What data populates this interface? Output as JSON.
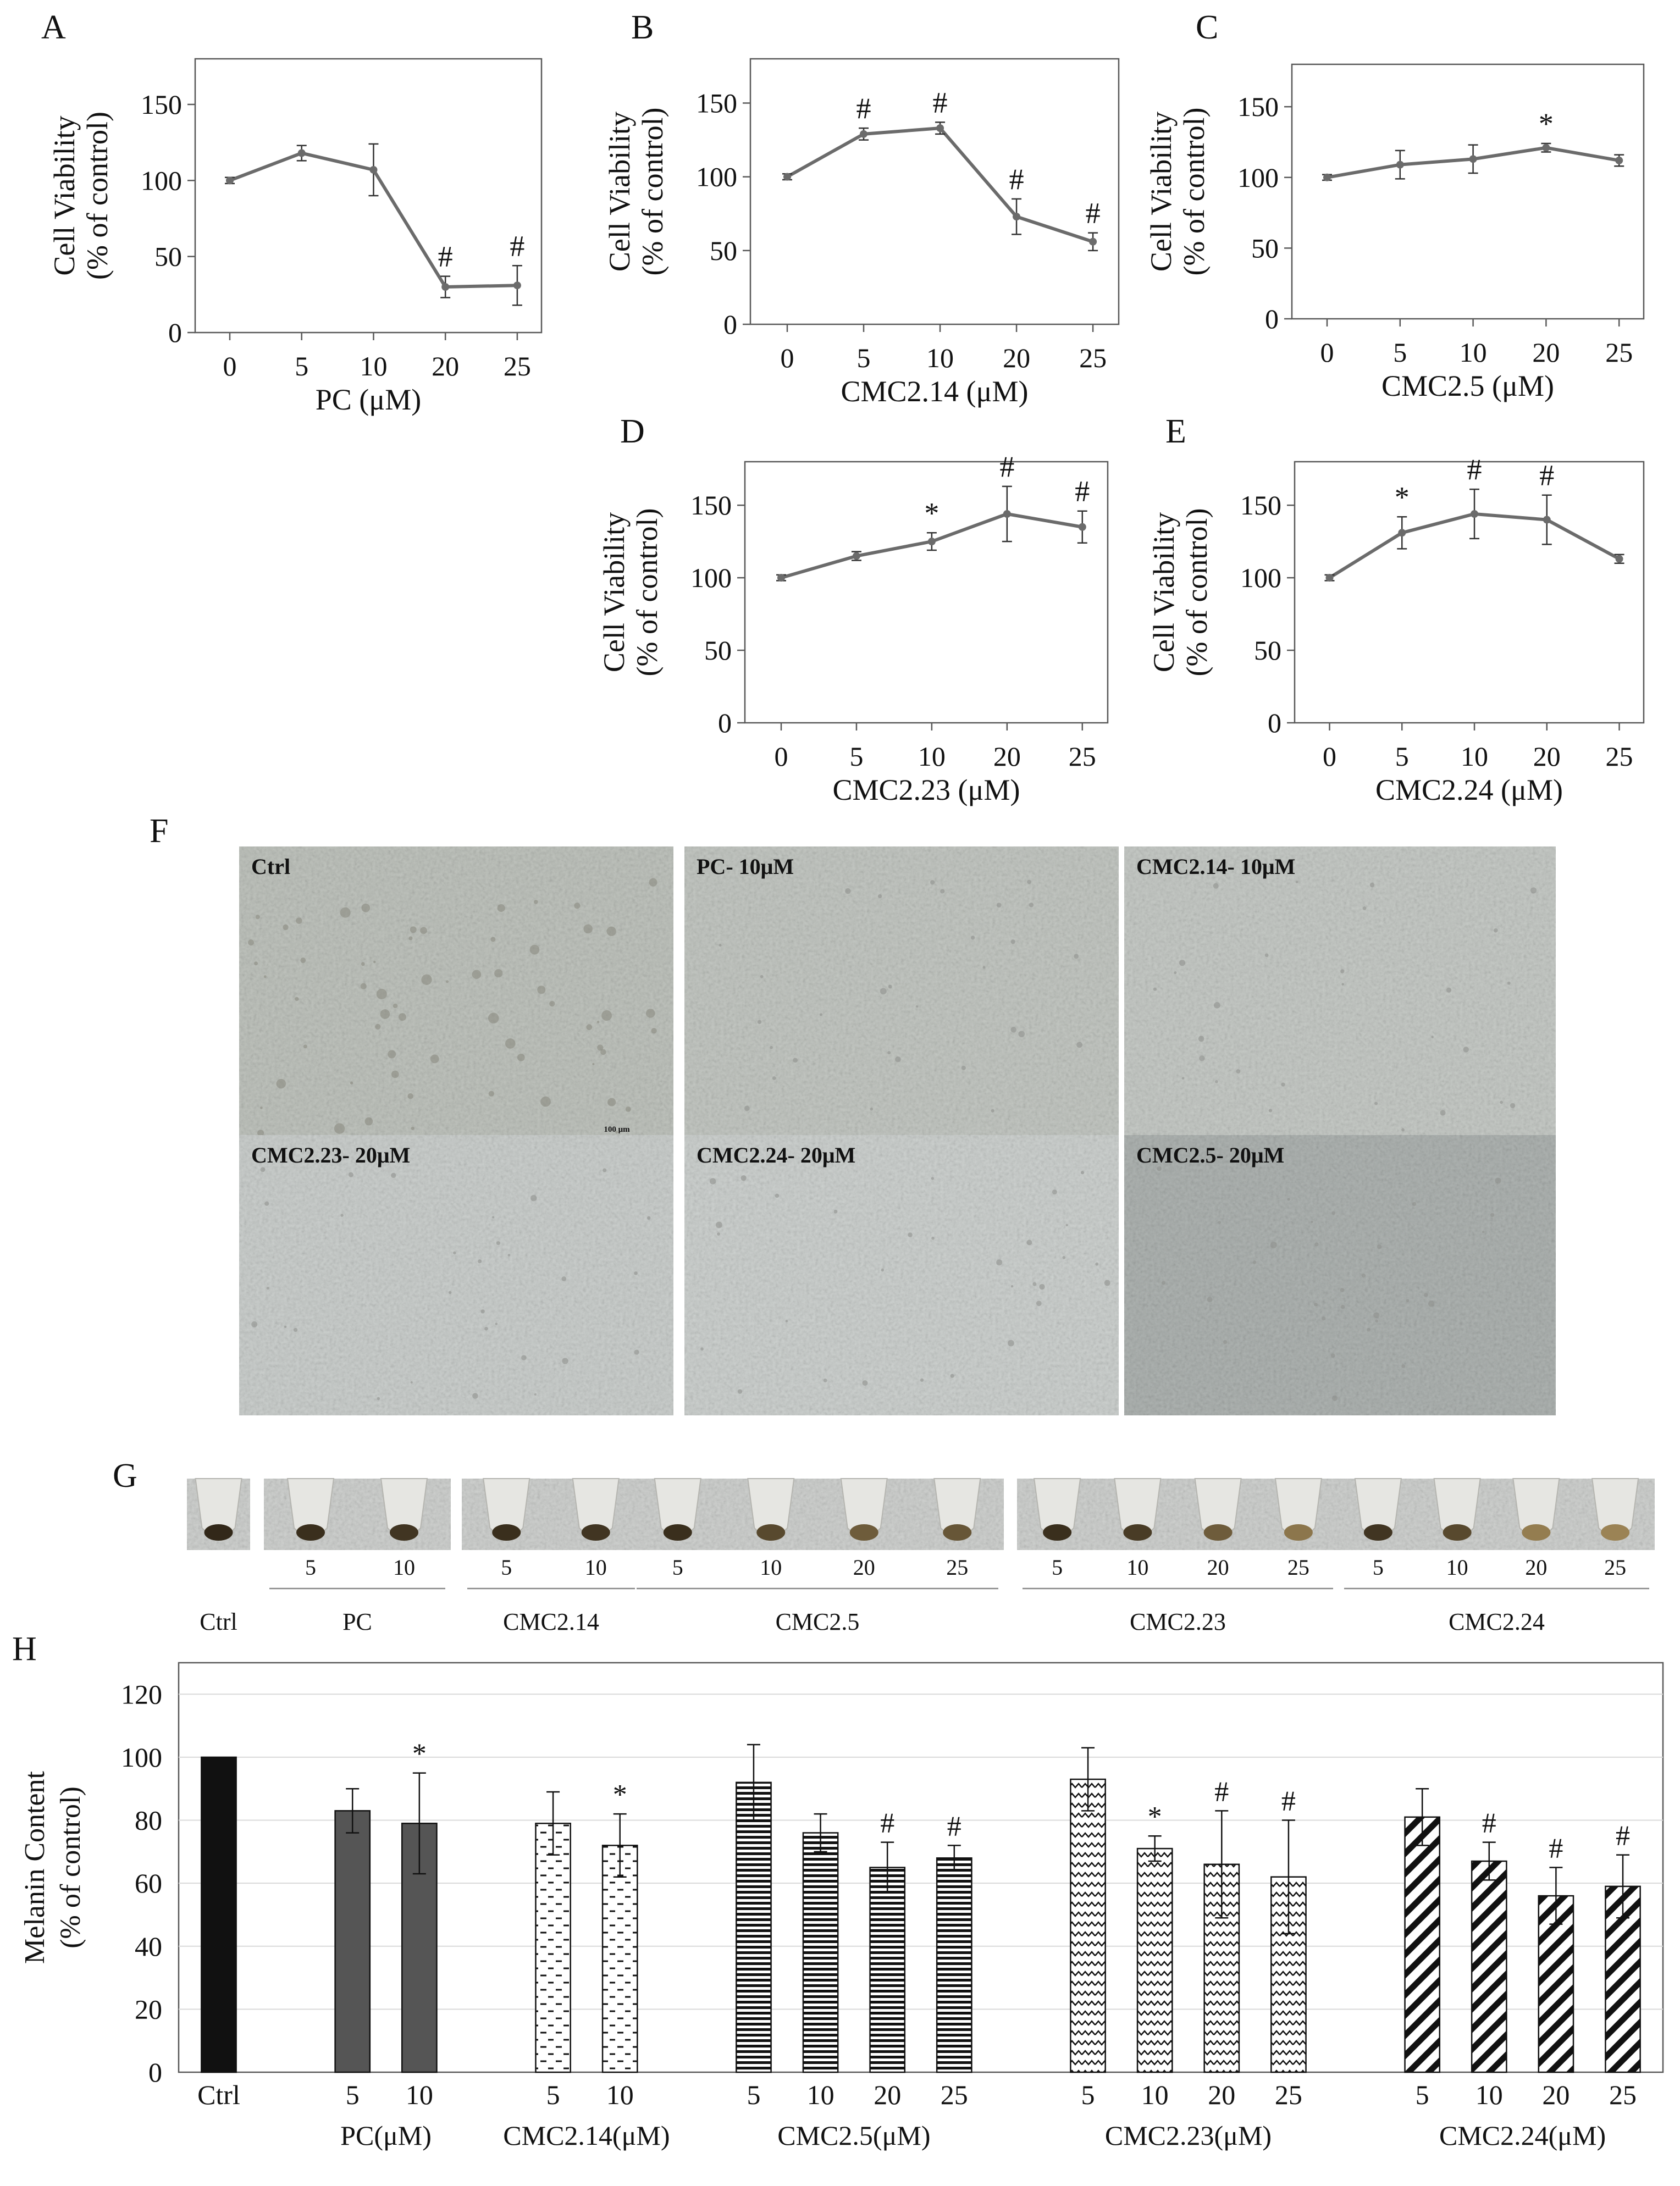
{
  "colors": {
    "line": "#6b6b6b",
    "axis": "#595959",
    "grid": "#d9d9d9",
    "text": "#111111",
    "photo_light": "#c9cdcb",
    "photo_dark": "#a9adab",
    "pellet": "#3f2418"
  },
  "chart_data": [
    {
      "id": "A",
      "type": "line",
      "panel_letter": "A",
      "x": [
        "0",
        "5",
        "10",
        "20",
        "25"
      ],
      "values": [
        100,
        118,
        107,
        30,
        31
      ],
      "errors": [
        2,
        5,
        17,
        7,
        13
      ],
      "annotations": [
        "",
        "",
        "",
        "#",
        "#"
      ],
      "xlabel": "PC (μM)",
      "ylabel": [
        "Cell Viability",
        "(% of control)"
      ],
      "yticks": [
        0,
        50,
        100,
        150
      ],
      "ylim": [
        0,
        180
      ],
      "grid": false
    },
    {
      "id": "B",
      "type": "line",
      "panel_letter": "B",
      "x": [
        "0",
        "5",
        "10",
        "20",
        "25"
      ],
      "values": [
        100,
        129,
        133,
        73,
        56
      ],
      "errors": [
        2,
        4,
        4,
        12,
        6
      ],
      "annotations": [
        "",
        "#",
        "#",
        "#",
        "#"
      ],
      "xlabel": "CMC2.14 (μM)",
      "ylabel": [
        "Cell Viability",
        "(% of control)"
      ],
      "yticks": [
        0,
        50,
        100,
        150
      ],
      "ylim": [
        0,
        180
      ],
      "grid": false
    },
    {
      "id": "C",
      "type": "line",
      "panel_letter": "C",
      "x": [
        "0",
        "5",
        "10",
        "20",
        "25"
      ],
      "values": [
        100,
        109,
        113,
        121,
        112
      ],
      "errors": [
        2,
        10,
        10,
        3,
        4
      ],
      "annotations": [
        "",
        "",
        "",
        "*",
        ""
      ],
      "xlabel": "CMC2.5 (μM)",
      "ylabel": [
        "Cell Viability",
        "(% of control)"
      ],
      "yticks": [
        0,
        50,
        100,
        150
      ],
      "ylim": [
        0,
        180
      ],
      "grid": false
    },
    {
      "id": "D",
      "type": "line",
      "panel_letter": "D",
      "x": [
        "0",
        "5",
        "10",
        "20",
        "25"
      ],
      "values": [
        100,
        115,
        125,
        144,
        135
      ],
      "errors": [
        2,
        3,
        6,
        19,
        11
      ],
      "annotations": [
        "",
        "",
        "*",
        "#",
        "#"
      ],
      "xlabel": "CMC2.23 (μM)",
      "ylabel": [
        "Cell Viability",
        "(% of control)"
      ],
      "yticks": [
        0,
        50,
        100,
        150
      ],
      "ylim": [
        0,
        180
      ],
      "grid": false
    },
    {
      "id": "E",
      "type": "line",
      "panel_letter": "E",
      "x": [
        "0",
        "5",
        "10",
        "20",
        "25"
      ],
      "values": [
        100,
        131,
        144,
        140,
        113
      ],
      "errors": [
        2,
        11,
        17,
        17,
        3
      ],
      "annotations": [
        "",
        "*",
        "#",
        "#",
        ""
      ],
      "xlabel": "CMC2.24 (μM)",
      "ylabel": [
        "Cell Viability",
        "(% of control)"
      ],
      "yticks": [
        0,
        50,
        100,
        150
      ],
      "ylim": [
        0,
        180
      ],
      "grid": false
    },
    {
      "id": "H",
      "type": "bar",
      "panel_letter": "H",
      "ylabel": [
        "Melanin Content",
        "(% of control)"
      ],
      "yticks": [
        0,
        20,
        40,
        60,
        80,
        100,
        120
      ],
      "ylim": [
        0,
        130
      ],
      "grid": true,
      "groups": [
        {
          "label": "",
          "pattern": "solid-black",
          "bars": [
            {
              "x": "Ctrl",
              "value": 100,
              "error": 0,
              "annotation": ""
            }
          ]
        },
        {
          "label": "PC(μM)",
          "pattern": "solid-gray",
          "bars": [
            {
              "x": "5",
              "value": 83,
              "error": 7,
              "annotation": ""
            },
            {
              "x": "10",
              "value": 79,
              "error": 16,
              "annotation": "*"
            }
          ]
        },
        {
          "label": "CMC2.14(μM)",
          "pattern": "dashes",
          "bars": [
            {
              "x": "5",
              "value": 79,
              "error": 10,
              "annotation": ""
            },
            {
              "x": "10",
              "value": 72,
              "error": 10,
              "annotation": "*"
            }
          ]
        },
        {
          "label": "CMC2.5(μM)",
          "pattern": "horizontal-lines",
          "bars": [
            {
              "x": "5",
              "value": 92,
              "error": 12,
              "annotation": ""
            },
            {
              "x": "10",
              "value": 76,
              "error": 6,
              "annotation": ""
            },
            {
              "x": "20",
              "value": 65,
              "error": 8,
              "annotation": "#"
            },
            {
              "x": "25",
              "value": 68,
              "error": 4,
              "annotation": "#"
            }
          ]
        },
        {
          "label": "CMC2.23(μM)",
          "pattern": "zigzag",
          "bars": [
            {
              "x": "5",
              "value": 93,
              "error": 10,
              "annotation": ""
            },
            {
              "x": "10",
              "value": 71,
              "error": 4,
              "annotation": "*"
            },
            {
              "x": "20",
              "value": 66,
              "error": 17,
              "annotation": "#"
            },
            {
              "x": "25",
              "value": 62,
              "error": 18,
              "annotation": "#"
            }
          ]
        },
        {
          "label": "CMC2.24(μM)",
          "pattern": "diagonal",
          "bars": [
            {
              "x": "5",
              "value": 81,
              "error": 9,
              "annotation": ""
            },
            {
              "x": "10",
              "value": 67,
              "error": 6,
              "annotation": "#"
            },
            {
              "x": "20",
              "value": 56,
              "error": 9,
              "annotation": "#"
            },
            {
              "x": "25",
              "value": 59,
              "error": 10,
              "annotation": "#"
            }
          ]
        }
      ]
    }
  ],
  "photos": {
    "panel_letter": "F",
    "tiles": [
      {
        "label": "Ctrl",
        "scale_bar": "100 μm"
      },
      {
        "label": "PC- 10μM"
      },
      {
        "label": "CMC2.14- 10μM"
      },
      {
        "label": "CMC2.23- 20μM"
      },
      {
        "label": "CMC2.24- 20μM"
      },
      {
        "label": "CMC2.5- 20μM"
      }
    ]
  },
  "tubes": {
    "panel_letter": "G",
    "groups": [
      {
        "name": "Ctrl",
        "concentrations": [],
        "intensities": [
          1.0
        ]
      },
      {
        "name": "PC",
        "concentrations": [
          "5",
          "10"
        ],
        "intensities": [
          0.95,
          0.9
        ]
      },
      {
        "name": "CMC2.14",
        "concentrations": [
          "5",
          "10"
        ],
        "intensities": [
          0.95,
          0.9
        ]
      },
      {
        "name": "CMC2.5",
        "concentrations": [
          "5",
          "10",
          "20",
          "25"
        ],
        "intensities": [
          0.95,
          0.75,
          0.6,
          0.65
        ]
      },
      {
        "name": "CMC2.23",
        "concentrations": [
          "5",
          "10",
          "20",
          "25"
        ],
        "intensities": [
          0.95,
          0.85,
          0.6,
          0.4
        ]
      },
      {
        "name": "CMC2.24",
        "concentrations": [
          "5",
          "10",
          "20",
          "25"
        ],
        "intensities": [
          0.9,
          0.75,
          0.35,
          0.3
        ]
      }
    ]
  }
}
